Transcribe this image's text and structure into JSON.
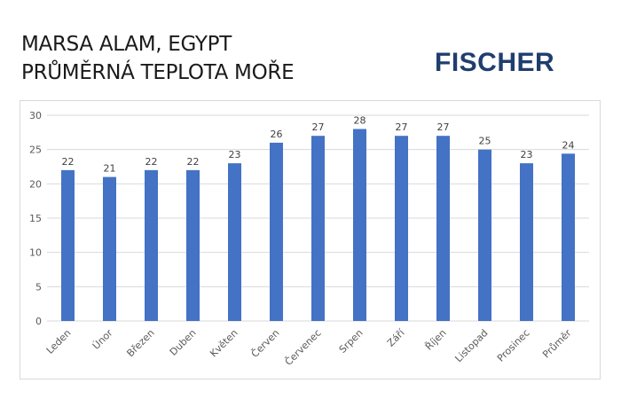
{
  "header": {
    "title_line1": "MARSA ALAM, EGYPT",
    "title_line2": "PRŮMĚRNÁ TEPLOTA MOŘE",
    "logo": "FISCHER"
  },
  "colors": {
    "bar": "#4472c4",
    "grid": "#d9d9d9",
    "logo": "#1f3e6e"
  },
  "chart_data": {
    "type": "bar",
    "title": "MARSA ALAM, EGYPT — PRŮMĚRNÁ TEPLOTA MOŘE",
    "xlabel": "",
    "ylabel": "",
    "ylim": [
      0,
      30
    ],
    "yticks": [
      0,
      5,
      10,
      15,
      20,
      25,
      30
    ],
    "grid": true,
    "legend": null,
    "categories": [
      "Leden",
      "Únor",
      "Březen",
      "Duben",
      "Květen",
      "Červen",
      "Červenec",
      "Srpen",
      "Září",
      "Říjen",
      "Listopad",
      "Prosinec",
      "Průměr"
    ],
    "values": [
      22,
      21,
      22,
      22,
      23,
      26,
      27,
      28,
      27,
      27,
      25,
      23,
      24.4
    ],
    "data_labels": [
      "22",
      "21",
      "22",
      "22",
      "23",
      "26",
      "27",
      "28",
      "27",
      "27",
      "25",
      "23",
      "24"
    ]
  }
}
